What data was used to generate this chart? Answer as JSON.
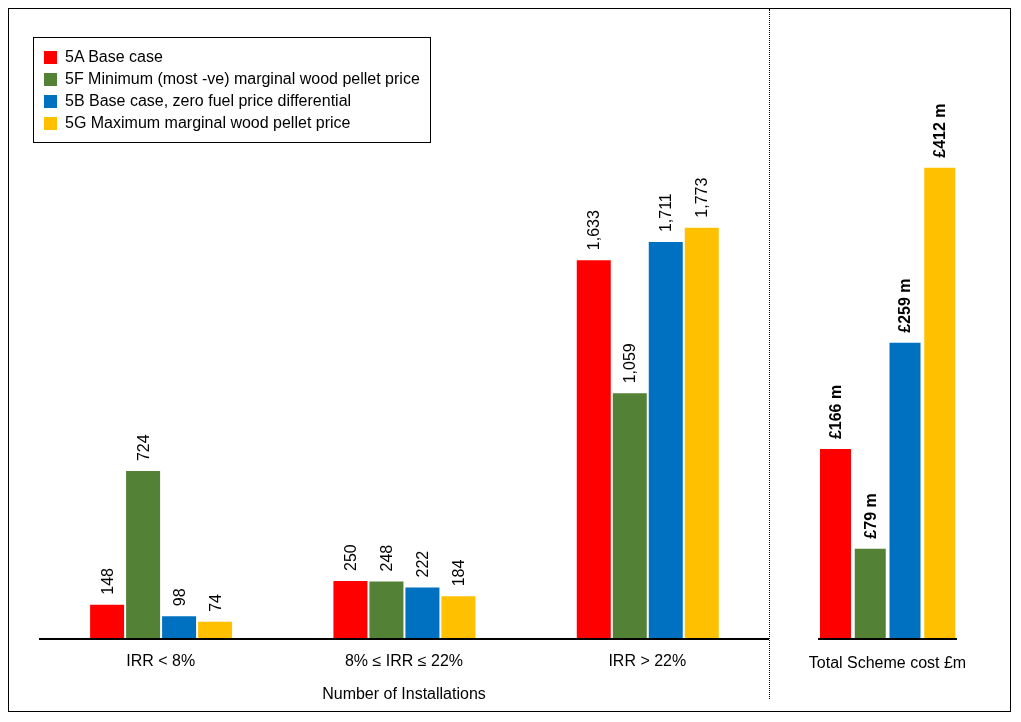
{
  "chart_data": [
    {
      "type": "bar",
      "xlabel": "Number of Installations",
      "legend": "top left",
      "categories": [
        "IRR < 8%",
        "8% ≤ IRR ≤ 22%",
        "IRR > 22%"
      ],
      "series": [
        {
          "name": "5A Base case",
          "color": "#ff0000",
          "values": [
            148,
            250,
            1633
          ],
          "value_labels": [
            "148",
            "250",
            "1,633"
          ]
        },
        {
          "name": "5F Minimum (most -ve) marginal wood pellet price",
          "color": "#538135",
          "values": [
            724,
            248,
            1059
          ],
          "value_labels": [
            "724",
            "248",
            "1,059"
          ]
        },
        {
          "name": "5B Base case, zero fuel price differential",
          "color": "#0070c0",
          "values": [
            98,
            222,
            1711
          ],
          "value_labels": [
            "98",
            "222",
            "1,711"
          ]
        },
        {
          "name": "5G Maximum marginal wood pellet price",
          "color": "#ffc000",
          "values": [
            74,
            184,
            1773
          ],
          "value_labels": [
            "74",
            "184",
            "1,773"
          ]
        }
      ]
    },
    {
      "type": "bar",
      "xlabel": "Total Scheme cost £m",
      "categories": [
        null,
        null,
        null,
        null
      ],
      "series": [
        {
          "colors": [
            "#ff0000",
            "#538135",
            "#0070c0",
            "#ffc000"
          ],
          "values": [
            166,
            79,
            259,
            412
          ],
          "value_labels": [
            "£166 m",
            "£79 m",
            "£259 m",
            "£412 m"
          ]
        }
      ]
    }
  ]
}
